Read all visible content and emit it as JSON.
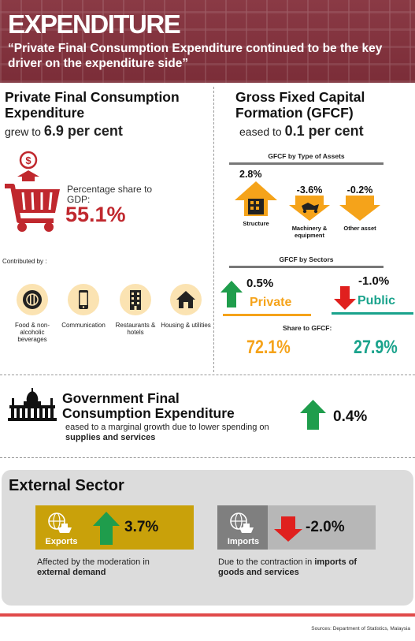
{
  "header": {
    "title": "EXPENDITURE",
    "quote": "“Private Final Consumption Expenditure continued to be the key driver on the expenditure side”"
  },
  "pfce": {
    "title": "Private Final Consumption Expenditure",
    "grew_prefix": "grew to",
    "grew_value": "6.9 per cent",
    "share_label": "Percentage share to GDP:",
    "share_value": "55.1%",
    "contributed_label": "Contributed by :",
    "categories": [
      {
        "label": "Food & non-alcoholic beverages",
        "icon": "food-plate-icon"
      },
      {
        "label": "Communication",
        "icon": "mobile-phone-icon"
      },
      {
        "label": "Restaurants & hotels",
        "icon": "hotel-building-icon"
      },
      {
        "label": "Housing & utilities",
        "icon": "house-icon"
      }
    ]
  },
  "gfcf": {
    "title": "Gross Fixed Capital Formation (GFCF)",
    "eased_prefix": "eased to",
    "eased_value": "0.1 per cent",
    "by_assets_label": "GFCF by Type of Assets",
    "assets": [
      {
        "pct": "2.8%",
        "label": "Structure",
        "direction": "up"
      },
      {
        "pct": "-3.6%",
        "label": "Machinery & equipment",
        "direction": "down"
      },
      {
        "pct": "-0.2%",
        "label": "Other asset",
        "direction": "down"
      }
    ],
    "by_sectors_label": "GFCF by Sectors",
    "sectors": [
      {
        "pct": "0.5%",
        "name": "Private",
        "direction": "up",
        "color": "#f5a31a",
        "share": "72.1%"
      },
      {
        "pct": "-1.0%",
        "name": "Public",
        "direction": "down",
        "color": "#1aa38c",
        "share": "27.9%"
      }
    ],
    "share_label": "Share to GFCF:"
  },
  "government": {
    "title": "Government Final Consumption Expenditure",
    "desc_part1": "eased to a marginal growth due to lower spending on",
    "desc_bold": "supplies and services",
    "pct": "0.4%"
  },
  "external": {
    "title": "External Sector",
    "exports": {
      "label": "Exports",
      "pct": "3.7%",
      "desc_part1": "Affected by the moderation in",
      "desc_bold": "external demand"
    },
    "imports": {
      "label": "Imports",
      "pct": "-2.0%",
      "desc_part1": "Due to the contraction in",
      "desc_bold_1": "imports of",
      "desc_bold_2": "goods and services"
    }
  },
  "source": "Sources: Department of Statistics, Malaysia",
  "colors": {
    "header_bg": "#7b2d38",
    "accent_red": "#c0282e",
    "up_green": "#1f9d4c",
    "down_red": "#e0201e",
    "orange": "#f5a31a",
    "teal": "#1aa38c",
    "exports_gold": "#c9a10a",
    "imports_grey": "#7f7f7f"
  }
}
